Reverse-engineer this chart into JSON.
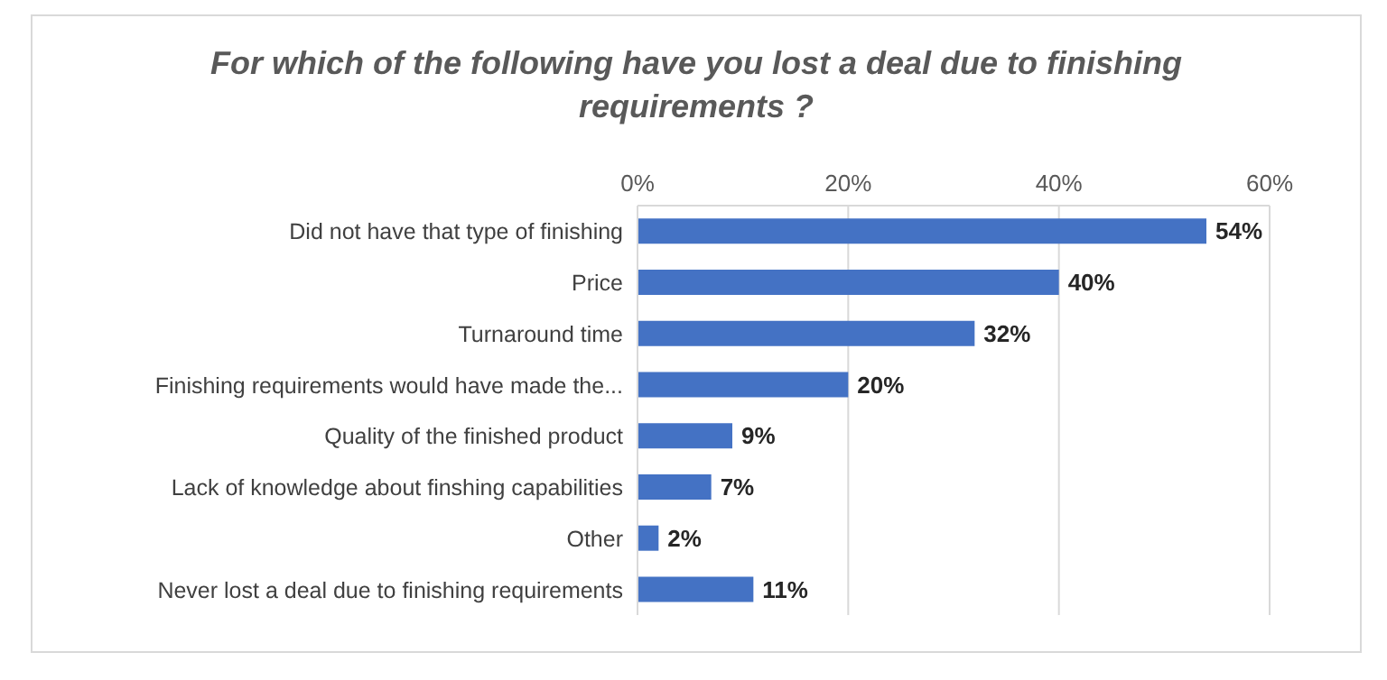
{
  "chart_data": {
    "type": "bar",
    "orientation": "horizontal",
    "title": "For which of the following have you lost a deal due to finishing requirements ?",
    "categories": [
      "Did not have that type of finishing",
      "Price",
      "Turnaround time",
      "Finishing requirements would have made the...",
      "Quality of the finished product",
      "Lack of knowledge about finshing capabilities",
      "Other",
      "Never lost a deal due to finishing requirements"
    ],
    "values": [
      54,
      40,
      32,
      20,
      9,
      7,
      2,
      11
    ],
    "value_labels": [
      "54%",
      "40%",
      "32%",
      "20%",
      "9%",
      "7%",
      "2%",
      "11%"
    ],
    "color": "#4472c4",
    "xlim": [
      0,
      60
    ],
    "xticks": [
      {
        "value": 0,
        "label": "0%"
      },
      {
        "value": 20,
        "label": "20%"
      },
      {
        "value": 40,
        "label": "40%"
      },
      {
        "value": 60,
        "label": "60%"
      }
    ],
    "grid": "x"
  }
}
